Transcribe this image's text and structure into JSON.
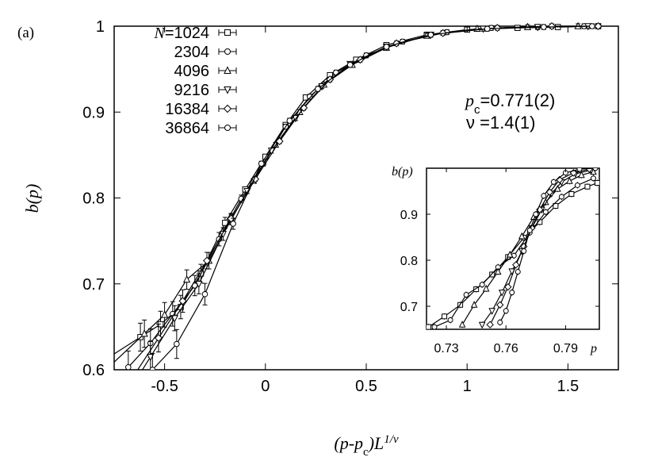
{
  "panel_label": "(a)",
  "chart_data": [
    {
      "type": "line",
      "role": "main",
      "xlabel": "(p-p_c)L^{1/ν}",
      "ylabel": "b(p)",
      "xlim": [
        -0.75,
        1.75
      ],
      "ylim": [
        0.6,
        1.0
      ],
      "x_ticks": [
        -0.5,
        0,
        0.5,
        1,
        1.5
      ],
      "x_tick_labels": [
        "-0.5",
        "0",
        "0.5",
        "1",
        "1.5"
      ],
      "y_ticks": [
        0.6,
        0.7,
        0.8,
        0.9,
        1.0
      ],
      "y_tick_labels": [
        "0.6",
        "0.7",
        "0.8",
        "0.9",
        "1"
      ],
      "legend_title": "N=",
      "legend_position": "top-left",
      "annotations": {
        "pc_symbol": "p",
        "pc_sub": "c",
        "pc_value": "=0.771(2)",
        "nu_text": "ν =1.4(1)"
      },
      "series": [
        {
          "name": "1024",
          "marker": "square",
          "x": [
            -0.62,
            -0.52,
            -0.42,
            -0.32,
            -0.2,
            -0.1,
            0,
            0.1,
            0.2,
            0.32,
            0.45,
            0.6,
            0.8,
            1.0,
            1.25,
            1.45,
            1.65
          ],
          "y": [
            0.638,
            0.653,
            0.673,
            0.712,
            0.771,
            0.81,
            0.848,
            0.885,
            0.917,
            0.943,
            0.961,
            0.978,
            0.99,
            0.996,
            0.998,
            0.999,
            1.0
          ]
        },
        {
          "name": "2304",
          "marker": "circle",
          "x": [
            -0.68,
            -0.57,
            -0.46,
            -0.35,
            -0.23,
            -0.12,
            -0.01,
            0.1,
            0.22,
            0.35,
            0.5,
            0.68,
            0.9,
            1.12,
            1.35,
            1.58
          ],
          "y": [
            0.603,
            0.631,
            0.665,
            0.698,
            0.752,
            0.799,
            0.84,
            0.883,
            0.918,
            0.946,
            0.966,
            0.982,
            0.993,
            0.998,
            0.999,
            1.0
          ]
        },
        {
          "name": "4096",
          "marker": "triangle-up",
          "x": [
            -0.6,
            -0.5,
            -0.39,
            -0.28,
            -0.17,
            -0.06,
            0.05,
            0.17,
            0.29,
            0.43,
            0.6,
            0.8,
            1.05,
            1.3,
            1.55
          ],
          "y": [
            0.642,
            0.664,
            0.705,
            0.727,
            0.775,
            0.82,
            0.862,
            0.9,
            0.932,
            0.955,
            0.975,
            0.989,
            0.997,
            0.999,
            1.0
          ]
        },
        {
          "name": "9216",
          "marker": "triangle-down",
          "x": [
            -0.57,
            -0.45,
            -0.33,
            -0.21,
            -0.09,
            0.03,
            0.15,
            0.28,
            0.42,
            0.6,
            0.82,
            1.08,
            1.35,
            1.6
          ],
          "y": [
            0.615,
            0.66,
            0.7,
            0.758,
            0.808,
            0.855,
            0.893,
            0.93,
            0.956,
            0.976,
            0.99,
            0.997,
            0.999,
            1.0
          ]
        },
        {
          "name": "16384",
          "marker": "diamond",
          "x": [
            -0.53,
            -0.41,
            -0.29,
            -0.17,
            -0.05,
            0.07,
            0.19,
            0.32,
            0.47,
            0.65,
            0.88,
            1.15,
            1.42,
            1.65
          ],
          "y": [
            0.637,
            0.68,
            0.727,
            0.776,
            0.822,
            0.866,
            0.905,
            0.938,
            0.961,
            0.98,
            0.992,
            0.998,
            1.0,
            1.0
          ]
        },
        {
          "name": "36864",
          "marker": "circle",
          "x": [
            -0.56,
            -0.44,
            -0.3,
            -0.16,
            -0.02,
            0.12,
            0.26,
            0.42,
            0.6,
            0.82,
            1.1,
            1.38,
            1.62
          ],
          "y": [
            0.6,
            0.63,
            0.688,
            0.77,
            0.84,
            0.89,
            0.927,
            0.955,
            0.976,
            0.99,
            0.997,
            0.999,
            1.0
          ]
        }
      ]
    },
    {
      "type": "line",
      "role": "inset",
      "xlabel": "p",
      "ylabel": "b(p)",
      "xlim": [
        0.72,
        0.807
      ],
      "ylim": [
        0.65,
        1.0
      ],
      "x_ticks": [
        0.73,
        0.76,
        0.79
      ],
      "x_tick_labels": [
        "0.73",
        "0.76",
        "0.79"
      ],
      "y_ticks": [
        0.7,
        0.8,
        0.9
      ],
      "y_tick_labels": [
        "0.7",
        "0.8",
        "0.9"
      ],
      "series": [
        {
          "name": "1024",
          "marker": "square",
          "x": [
            0.721,
            0.729,
            0.737,
            0.745,
            0.753,
            0.761,
            0.769,
            0.777,
            0.785,
            0.793,
            0.801,
            0.806
          ],
          "y": [
            0.655,
            0.678,
            0.703,
            0.737,
            0.769,
            0.807,
            0.849,
            0.883,
            0.918,
            0.944,
            0.96,
            0.968
          ]
        },
        {
          "name": "2304",
          "marker": "circle",
          "x": [
            0.724,
            0.732,
            0.74,
            0.748,
            0.756,
            0.764,
            0.772,
            0.78,
            0.788,
            0.796,
            0.804
          ],
          "y": [
            0.655,
            0.67,
            0.725,
            0.747,
            0.785,
            0.81,
            0.86,
            0.905,
            0.938,
            0.963,
            0.978
          ]
        },
        {
          "name": "4096",
          "marker": "triangle-up",
          "x": [
            0.738,
            0.744,
            0.75,
            0.756,
            0.762,
            0.768,
            0.774,
            0.78,
            0.786,
            0.792,
            0.798,
            0.804
          ],
          "y": [
            0.66,
            0.703,
            0.738,
            0.775,
            0.812,
            0.852,
            0.894,
            0.926,
            0.955,
            0.972,
            0.985,
            0.992
          ]
        },
        {
          "name": "9216",
          "marker": "triangle-down",
          "x": [
            0.748,
            0.753,
            0.758,
            0.763,
            0.768,
            0.773,
            0.778,
            0.783,
            0.788,
            0.795,
            0.803
          ],
          "y": [
            0.66,
            0.69,
            0.73,
            0.776,
            0.82,
            0.87,
            0.91,
            0.945,
            0.97,
            0.988,
            0.996
          ]
        },
        {
          "name": "16384",
          "marker": "diamond",
          "x": [
            0.752,
            0.757,
            0.761,
            0.765,
            0.769,
            0.773,
            0.777,
            0.782,
            0.787,
            0.794,
            0.802
          ],
          "y": [
            0.66,
            0.703,
            0.742,
            0.79,
            0.83,
            0.87,
            0.91,
            0.948,
            0.975,
            0.99,
            0.998
          ]
        },
        {
          "name": "36864",
          "marker": "circle",
          "x": [
            0.757,
            0.76,
            0.763,
            0.766,
            0.769,
            0.772,
            0.775,
            0.779,
            0.784,
            0.79,
            0.797,
            0.805
          ],
          "y": [
            0.665,
            0.69,
            0.73,
            0.775,
            0.82,
            0.865,
            0.9,
            0.94,
            0.97,
            0.99,
            0.998,
            1.0
          ]
        }
      ]
    }
  ]
}
